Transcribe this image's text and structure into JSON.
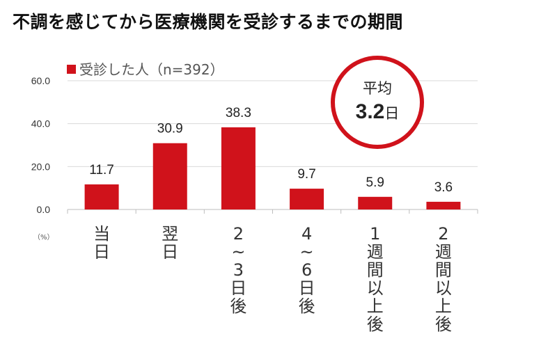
{
  "chart_data": {
    "type": "bar",
    "title": "不調を感じてから医療機関を受診するまでの期間",
    "categories": [
      "当日",
      "翌日",
      "2~3日後",
      "4~6日後",
      "1週間以上後",
      "2週間以上後"
    ],
    "category_labels": [
      [
        "当",
        "日"
      ],
      [
        "翌",
        "日"
      ],
      [
        "2",
        "~",
        "3",
        "日",
        "後"
      ],
      [
        "4",
        "~",
        "6",
        "日",
        "後"
      ],
      [
        "1",
        "週",
        "間",
        "以",
        "上",
        "後"
      ],
      [
        "2",
        "週",
        "間",
        "以",
        "上",
        "後"
      ]
    ],
    "series": [
      {
        "name": "受診した人（n=392）",
        "values": [
          11.7,
          30.9,
          38.3,
          9.7,
          5.9,
          3.6
        ]
      }
    ],
    "value_labels": [
      "11.7",
      "30.9",
      "38.3",
      "9.7",
      "5.9",
      "3.6"
    ],
    "y_ticks": [
      "0.0",
      "20.0",
      "40.0",
      "60.0"
    ],
    "ylim": [
      0,
      60
    ],
    "y_unit": "（%）",
    "grid": true,
    "legend_position": "top-left",
    "bar_color": "#d0121b",
    "average": {
      "label": "平均",
      "value": "3.2",
      "unit": "日",
      "ring_color": "#d0121b"
    }
  }
}
